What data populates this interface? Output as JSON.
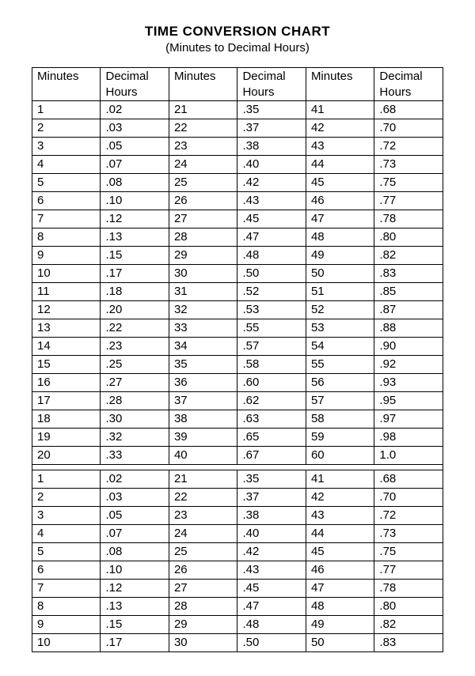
{
  "title": "TIME CONVERSION CHART",
  "subtitle": "(Minutes to Decimal Hours)",
  "headers": [
    "Minutes",
    "Decimal Hours",
    "Minutes",
    "Decimal Hours",
    "Minutes",
    "Decimal Hours"
  ],
  "table1": [
    [
      "1",
      ".02",
      "21",
      ".35",
      "41",
      ".68"
    ],
    [
      "2",
      ".03",
      "22",
      ".37",
      "42",
      ".70"
    ],
    [
      "3",
      ".05",
      "23",
      ".38",
      "43",
      ".72"
    ],
    [
      "4",
      ".07",
      "24",
      ".40",
      "44",
      ".73"
    ],
    [
      "5",
      ".08",
      "25",
      ".42",
      "45",
      ".75"
    ],
    [
      "6",
      ".10",
      "26",
      ".43",
      "46",
      ".77"
    ],
    [
      "7",
      ".12",
      "27",
      ".45",
      "47",
      ".78"
    ],
    [
      "8",
      ".13",
      "28",
      ".47",
      "48",
      ".80"
    ],
    [
      "9",
      ".15",
      "29",
      ".48",
      "49",
      ".82"
    ],
    [
      "10",
      ".17",
      "30",
      ".50",
      "50",
      ".83"
    ],
    [
      "11",
      ".18",
      "31",
      ".52",
      "51",
      ".85"
    ],
    [
      "12",
      ".20",
      "32",
      ".53",
      "52",
      ".87"
    ],
    [
      "13",
      ".22",
      "33",
      ".55",
      "53",
      ".88"
    ],
    [
      "14",
      ".23",
      "34",
      ".57",
      "54",
      ".90"
    ],
    [
      "15",
      ".25",
      "35",
      ".58",
      "55",
      ".92"
    ],
    [
      "16",
      ".27",
      "36",
      ".60",
      "56",
      ".93"
    ],
    [
      "17",
      ".28",
      "37",
      ".62",
      "57",
      ".95"
    ],
    [
      "18",
      ".30",
      "38",
      ".63",
      "58",
      ".97"
    ],
    [
      "19",
      ".32",
      "39",
      ".65",
      "59",
      ".98"
    ],
    [
      "20",
      ".33",
      "40",
      ".67",
      "60",
      "1.0"
    ]
  ],
  "table2": [
    [
      "1",
      ".02",
      "21",
      ".35",
      "41",
      ".68"
    ],
    [
      "2",
      ".03",
      "22",
      ".37",
      "42",
      ".70"
    ],
    [
      "3",
      ".05",
      "23",
      ".38",
      "43",
      ".72"
    ],
    [
      "4",
      ".07",
      "24",
      ".40",
      "44",
      ".73"
    ],
    [
      "5",
      ".08",
      "25",
      ".42",
      "45",
      ".75"
    ],
    [
      "6",
      ".10",
      "26",
      ".43",
      "46",
      ".77"
    ],
    [
      "7",
      ".12",
      "27",
      ".45",
      "47",
      ".78"
    ],
    [
      "8",
      ".13",
      "28",
      ".47",
      "48",
      ".80"
    ],
    [
      "9",
      ".15",
      "29",
      ".48",
      "49",
      ".82"
    ],
    [
      "10",
      ".17",
      "30",
      ".50",
      "50",
      ".83"
    ]
  ],
  "style": {
    "background_color": "#ffffff",
    "border_color": "#000000",
    "font_family": "Arial",
    "title_fontsize": 17,
    "subtitle_fontsize": 15,
    "cell_fontsize": 15
  }
}
